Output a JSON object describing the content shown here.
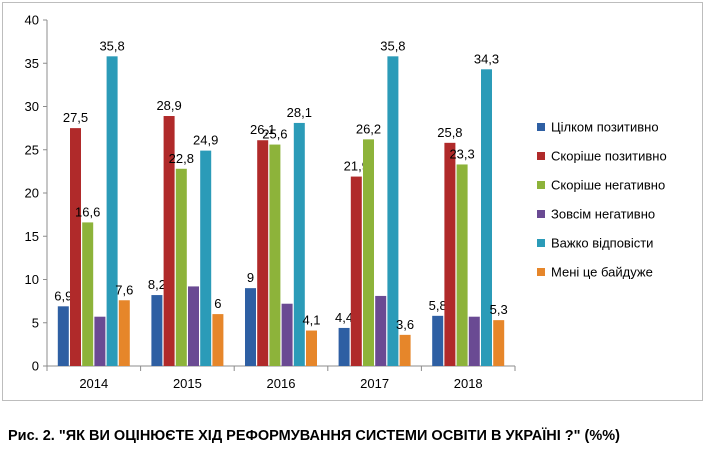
{
  "chart_data": {
    "type": "bar",
    "categories": [
      "2014",
      "2015",
      "2016",
      "2017",
      "2018"
    ],
    "series": [
      {
        "name": "Цілком позитивно",
        "color": "#2e5fa3",
        "values": [
          6.9,
          8.2,
          9,
          4.4,
          5.8
        ],
        "labels": [
          "6,9",
          "8,2",
          "9",
          "4,4",
          "5,8"
        ]
      },
      {
        "name": "Скоріше позитивно",
        "color": "#b02a2a",
        "values": [
          27.5,
          28.9,
          26.1,
          21.9,
          25.8
        ],
        "labels": [
          "27,5",
          "28,9",
          "26,1",
          "21,9",
          "25,8"
        ]
      },
      {
        "name": "Скоріше негативно",
        "color": "#8db33a",
        "values": [
          16.6,
          22.8,
          25.6,
          26.2,
          23.3
        ],
        "labels": [
          "16,6",
          "22,8",
          "25,6",
          "26,2",
          "23,3"
        ]
      },
      {
        "name": "Зовсім негативно",
        "color": "#6a4a93",
        "values": [
          5.7,
          9.2,
          7.2,
          8.1,
          5.7
        ],
        "labels": [
          null,
          null,
          null,
          null,
          null
        ]
      },
      {
        "name": "Важко відповісти",
        "color": "#2b9bb8",
        "values": [
          35.8,
          24.9,
          28.1,
          35.8,
          34.3
        ],
        "labels": [
          "35,8",
          "24,9",
          "28,1",
          "35,8",
          "34,3"
        ]
      },
      {
        "name": "Мені це байдуже",
        "color": "#e6862a",
        "values": [
          7.6,
          6,
          4.1,
          3.6,
          5.3
        ],
        "labels": [
          "7,6",
          "6",
          "4,1",
          "3,6",
          "5,3"
        ]
      }
    ],
    "ylim": [
      0,
      40
    ],
    "yticks": [
      "0",
      "5",
      "10",
      "15",
      "20",
      "25",
      "30",
      "35",
      "40"
    ],
    "grid": false,
    "legend_position": "right"
  },
  "caption": "Рис. 2. \"ЯК ВИ ОЦІНЮЄТЕ ХІД РЕФОРМУВАННЯ СИСТЕМИ ОСВІТИ В УКРАЇНІ ?\"  (%%)"
}
